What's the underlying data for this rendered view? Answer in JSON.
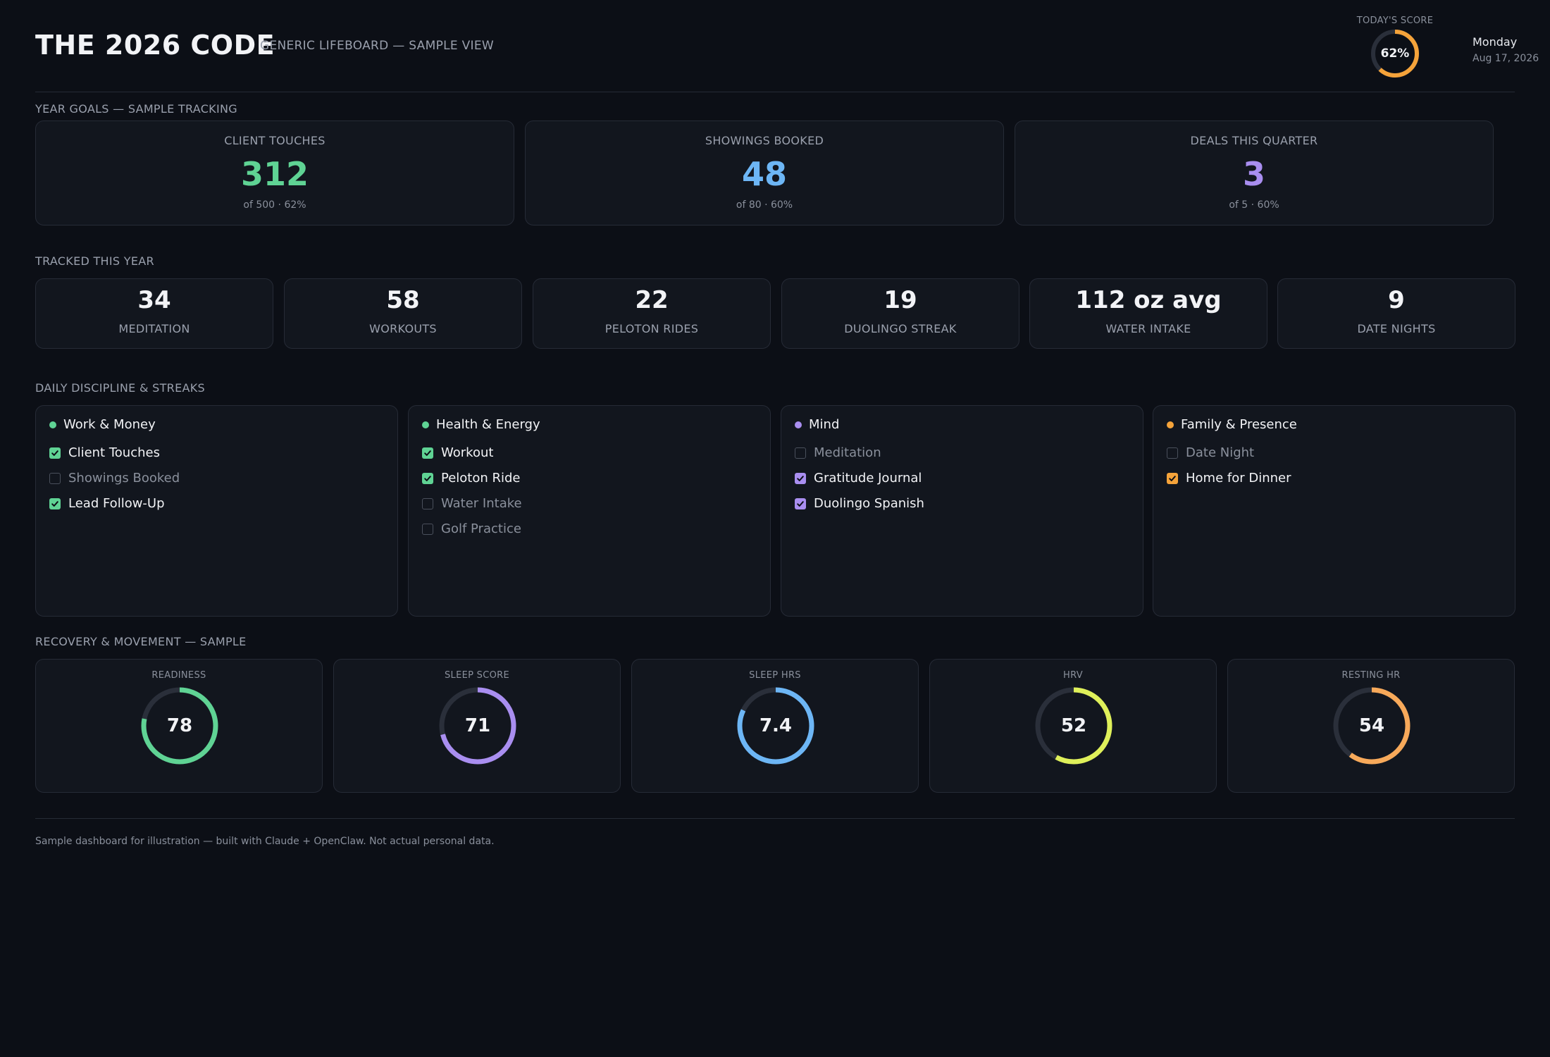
{
  "header": {
    "title": "THE 2026 CODE",
    "subtitle": "GENERIC LIFEBOARD — SAMPLE VIEW",
    "score_label": "TODAY'S SCORE",
    "score_value": "62%",
    "score_fraction": 0.62,
    "score_color": "#f5a33a",
    "day": "Monday",
    "date": "Aug 17, 2026"
  },
  "sections": {
    "goals": "YEAR GOALS — SAMPLE TRACKING",
    "tracked": "TRACKED THIS YEAR",
    "habits": "DAILY DISCIPLINE & STREAKS",
    "recovery": "RECOVERY & MOVEMENT — SAMPLE"
  },
  "goals": [
    {
      "label": "CLIENT TOUCHES",
      "value": "312",
      "sub": "of 500 · 62%",
      "color": "#5fd394"
    },
    {
      "label": "SHOWINGS BOOKED",
      "value": "48",
      "sub": "of 80 · 60%",
      "color": "#6db6f5"
    },
    {
      "label": "DEALS THIS QUARTER",
      "value": "3",
      "sub": "of 5 · 60%",
      "color": "#a98ef0"
    }
  ],
  "tracked": [
    {
      "value": "34",
      "label": "MEDITATION"
    },
    {
      "value": "58",
      "label": "WORKOUTS"
    },
    {
      "value": "22",
      "label": "PELOTON RIDES"
    },
    {
      "value": "19",
      "label": "DUOLINGO STREAK"
    },
    {
      "value": "112 oz avg",
      "label": "WATER INTAKE"
    },
    {
      "value": "9",
      "label": "DATE NIGHTS"
    }
  ],
  "habits": [
    {
      "title": "Work & Money",
      "color": "#5fd394",
      "items": [
        {
          "label": "Client Touches",
          "done": true
        },
        {
          "label": "Showings Booked",
          "done": false
        },
        {
          "label": "Lead Follow-Up",
          "done": true
        }
      ]
    },
    {
      "title": "Health & Energy",
      "color": "#5fd394",
      "items": [
        {
          "label": "Workout",
          "done": true
        },
        {
          "label": "Peloton Ride",
          "done": true
        },
        {
          "label": "Water Intake",
          "done": false
        },
        {
          "label": "Golf Practice",
          "done": false
        }
      ]
    },
    {
      "title": "Mind",
      "color": "#a98ef0",
      "items": [
        {
          "label": "Meditation",
          "done": false
        },
        {
          "label": "Gratitude Journal",
          "done": true
        },
        {
          "label": "Duolingo Spanish",
          "done": true
        }
      ]
    },
    {
      "title": "Family & Presence",
      "color": "#f5a33a",
      "items": [
        {
          "label": "Date Night",
          "done": false
        },
        {
          "label": "Home for Dinner",
          "done": true
        }
      ]
    }
  ],
  "recovery": [
    {
      "label": "READINESS",
      "value": "78",
      "fraction": 0.78,
      "color": "#5fd394"
    },
    {
      "label": "SLEEP SCORE",
      "value": "71",
      "fraction": 0.71,
      "color": "#a98ef0"
    },
    {
      "label": "SLEEP HRS",
      "value": "7.4",
      "fraction": 0.82,
      "color": "#6db6f5"
    },
    {
      "label": "HRV",
      "value": "52",
      "fraction": 0.58,
      "color": "#dff05a"
    },
    {
      "label": "RESTING HR",
      "value": "54",
      "fraction": 0.6,
      "color": "#f7a95a"
    }
  ],
  "footer": "Sample dashboard for illustration — built with Claude + OpenClaw. Not actual personal data."
}
